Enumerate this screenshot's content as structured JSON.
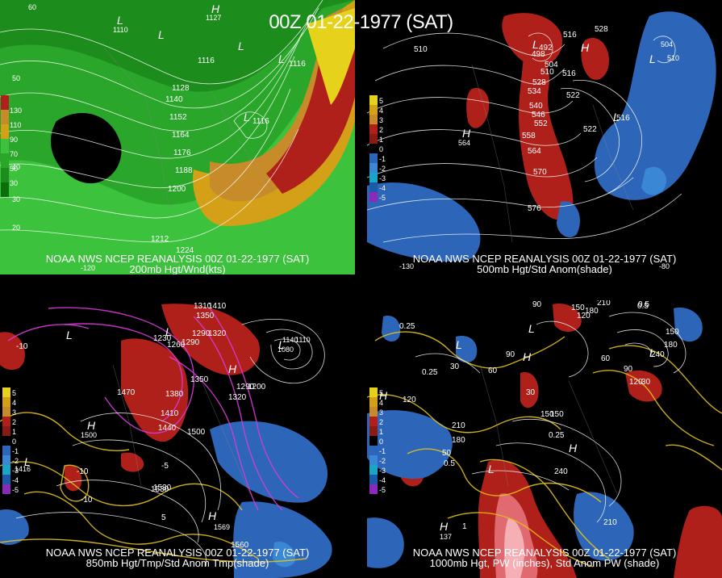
{
  "title": "00Z 01-22-1977 (SAT)",
  "panels": [
    {
      "id": "p1",
      "line1": "NOAA NWS NCEP REANALYSIS 00Z 01-22-1977 (SAT)",
      "line2": "200mb Hgt/Wnd(kts)",
      "legend": [
        "130",
        "110",
        "90",
        "70",
        "50",
        "30"
      ],
      "contours": [
        "1116",
        "1116",
        "1116",
        "1128",
        "1140",
        "1152",
        "1164",
        "1176",
        "1188",
        "1200",
        "1212",
        "1224",
        "1110",
        "1127"
      ],
      "corner": [
        "60",
        "50",
        "40",
        "30",
        "20",
        "-120"
      ]
    },
    {
      "id": "p2",
      "line1": "NOAA NWS NCEP REANALYSIS 00Z 01-22-1977 (SAT)",
      "line2": "500mb Hgt/Std Anom(shade)",
      "legend": [
        "5",
        "4",
        "3",
        "2",
        "1",
        "0",
        "-1",
        "-2",
        "-3",
        "-4",
        "-5"
      ],
      "contours": [
        "510",
        "516",
        "528",
        "492",
        "498",
        "504",
        "510",
        "516",
        "522",
        "528",
        "534",
        "540",
        "546",
        "552",
        "558",
        "564",
        "570",
        "576",
        "516",
        "522",
        "504",
        "510",
        "564"
      ],
      "corner": [
        "-130",
        "-80"
      ]
    },
    {
      "id": "p3",
      "line1": "NOAA NWS NCEP REANALYSIS 00Z 01-22-1977 (SAT)",
      "line2": "850mb Hgt/Tmp/Std Anom Tmp(shade)",
      "legend": [
        "5",
        "4",
        "3",
        "2",
        "1",
        "0",
        "-1",
        "-2",
        "-3",
        "-4",
        "-5"
      ],
      "contours": [
        "1310",
        "1350",
        "1410",
        "1290",
        "1320",
        "1230",
        "1260",
        "1290",
        "1470",
        "1380",
        "1410",
        "1440",
        "1500",
        "1530",
        "1560",
        "1569",
        "1500",
        "1350",
        "1320",
        "1290",
        "1200",
        "1140",
        "1080",
        "1110",
        "1530",
        "1416",
        "-10",
        "-5",
        "-10",
        "5",
        "-10"
      ],
      "corner": []
    },
    {
      "id": "p4",
      "line1": "NOAA NWS NCEP REANALYSIS 00Z 01-22-1977 (SAT)",
      "line2": "1000mb Hgt, PW (inches), Std Anom PW (shade)",
      "legend": [
        "5",
        "4",
        "3",
        "2",
        "1",
        "0",
        "-1",
        "-2",
        "-3",
        "-4",
        "-5"
      ],
      "contours": [
        "90",
        "150",
        "180",
        "210",
        "0.5",
        "0.25",
        "0.25",
        "0.25",
        "120",
        "30",
        "60",
        "90",
        "30",
        "120",
        "150",
        "60",
        "240",
        "180",
        "150",
        "120",
        "90",
        "30",
        "210",
        "180",
        "150",
        "50",
        "0.5",
        "240",
        "210",
        "0.5",
        "1",
        "137"
      ],
      "corner": []
    }
  ]
}
